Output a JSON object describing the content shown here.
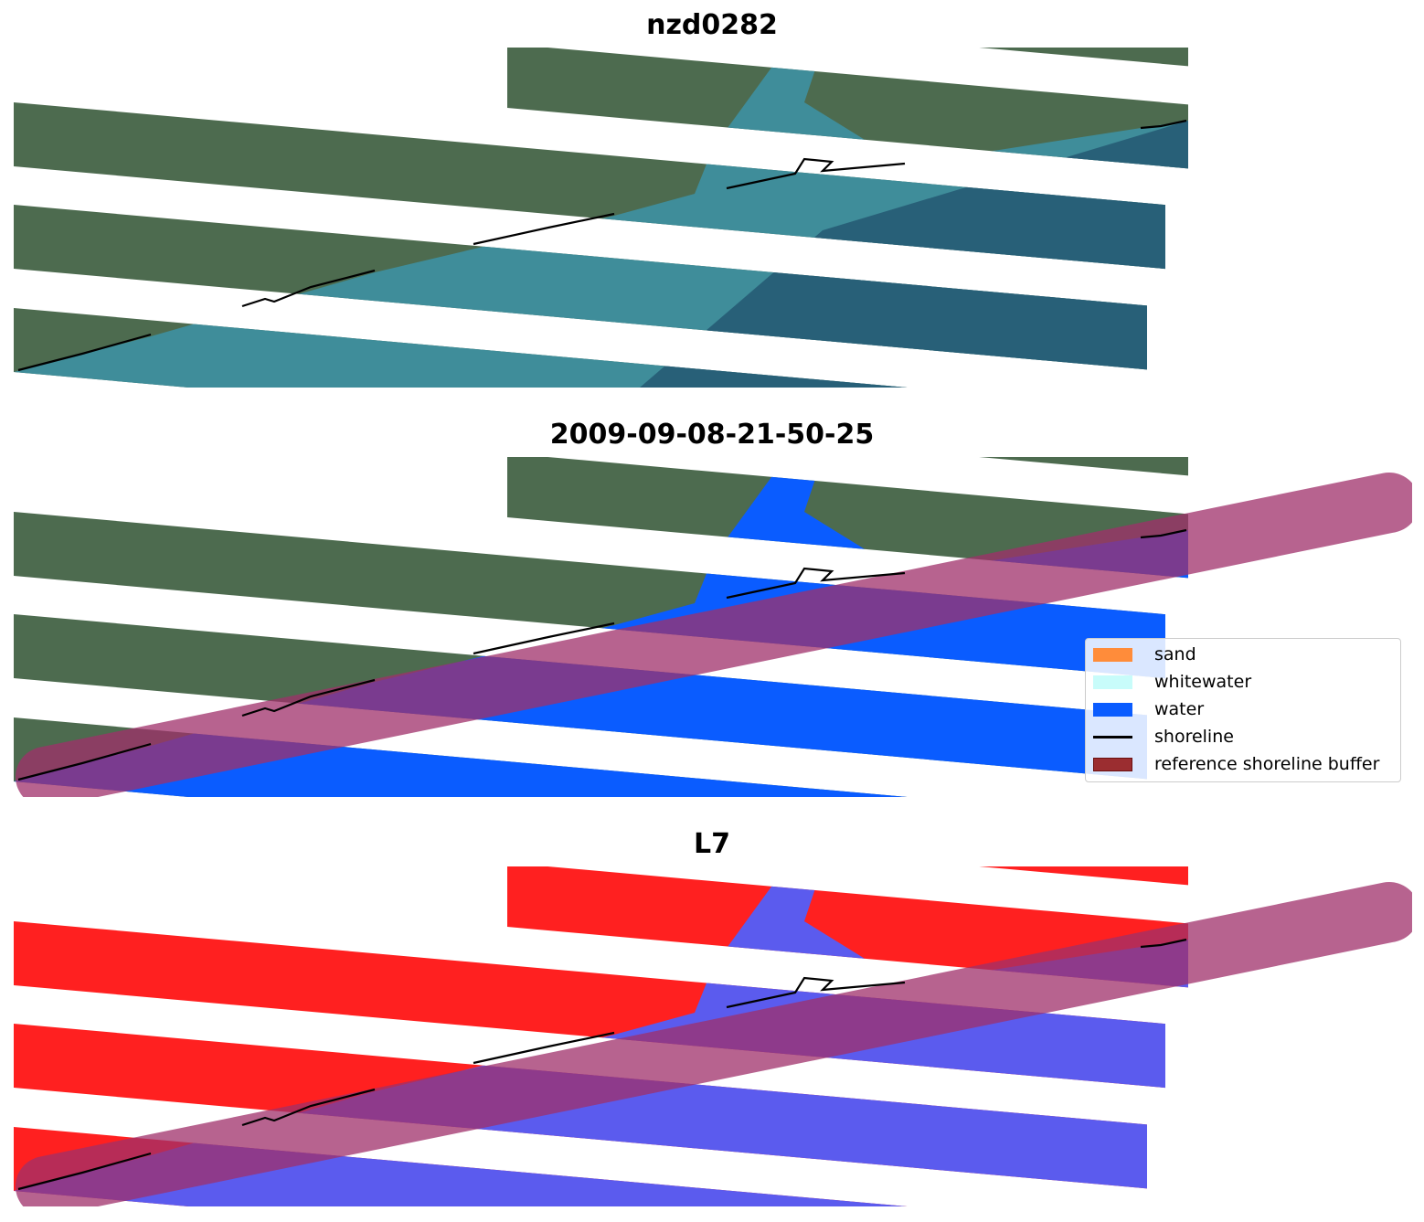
{
  "panels": [
    {
      "title": "nzd0282",
      "mode": "rgb"
    },
    {
      "title": "2009-09-08-21-50-25",
      "mode": "classified"
    },
    {
      "title": "L7",
      "mode": "index"
    }
  ],
  "legend": {
    "items": [
      {
        "label": "sand",
        "color": "#ff8c3a",
        "type": "patch"
      },
      {
        "label": "whitewater",
        "color": "#c8fcfa",
        "type": "patch"
      },
      {
        "label": "water",
        "color": "#0a5cff",
        "type": "patch"
      },
      {
        "label": "shoreline",
        "color": "#000000",
        "type": "line"
      },
      {
        "label": "reference shoreline buffer",
        "color": "#9b2d30",
        "type": "patch"
      }
    ]
  },
  "colors": {
    "land_rgb": "#4d6b4f",
    "water_rgb": "#3f8d9a",
    "deep_rgb": "#1f4d6a",
    "water_class": "#0a5cff",
    "land_index": "#ff2020",
    "water_index": "#5b5bee",
    "buffer": "#a0306a"
  }
}
